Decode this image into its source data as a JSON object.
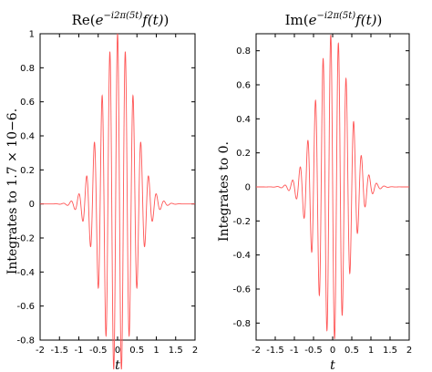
{
  "chart_data": [
    {
      "type": "line",
      "title": {
        "pre": "Re",
        "base": "e",
        "sup": "−i2π(5t)",
        "post": "f(t)"
      },
      "ylabel": "Integrates to 1.7 × 10−6.",
      "xlabel": "t",
      "xlim": [
        -2,
        2
      ],
      "ylim": [
        -0.8,
        1.0
      ],
      "xticks": [
        -2,
        -1.5,
        -1,
        -0.5,
        0,
        0.5,
        1,
        1.5,
        2
      ],
      "xtick_labels": [
        "-2",
        "-1.5",
        "-1",
        "-0.5",
        "0",
        "0.5",
        "1",
        "1.5",
        "2"
      ],
      "yticks": [
        -0.8,
        -0.6,
        -0.4,
        -0.2,
        0,
        0.2,
        0.4,
        0.6,
        0.8,
        1.0
      ],
      "ytick_labels": [
        "-0.8",
        "-0.6",
        "-0.4",
        "-0.2",
        "0",
        "0.2",
        "0.4",
        "0.6",
        "0.8",
        "1"
      ],
      "series": [
        {
          "kind": "real",
          "frequency": 5,
          "envelope_sigma": 0.42,
          "amplitude": 1.0,
          "color": "#ff5555",
          "x_range": [
            -2,
            2
          ]
        }
      ],
      "grid": false
    },
    {
      "type": "line",
      "title": {
        "pre": "Im",
        "base": "e",
        "sup": "−i2π(5t)",
        "post": "f(t)"
      },
      "ylabel": "Integrates to 0.",
      "xlabel": "t",
      "xlim": [
        -2,
        2
      ],
      "ylim": [
        -0.9,
        0.9
      ],
      "xticks": [
        -2,
        -1.5,
        -1,
        -0.5,
        0,
        0.5,
        1,
        1.5,
        2
      ],
      "xtick_labels": [
        "-2",
        "-1.5",
        "-1",
        "-0.5",
        "0",
        "0.5",
        "1",
        "1.5",
        "2"
      ],
      "yticks": [
        -0.8,
        -0.6,
        -0.4,
        -0.2,
        0,
        0.2,
        0.4,
        0.6,
        0.8
      ],
      "ytick_labels": [
        "-0.8",
        "-0.6",
        "-0.4",
        "-0.2",
        "0",
        "0.2",
        "0.4",
        "0.6",
        "0.8"
      ],
      "series": [
        {
          "kind": "imag",
          "frequency": 5,
          "envelope_sigma": 0.42,
          "amplitude": 0.9,
          "color": "#ff5555",
          "x_range": [
            -2,
            2
          ]
        }
      ],
      "grid": false
    }
  ]
}
